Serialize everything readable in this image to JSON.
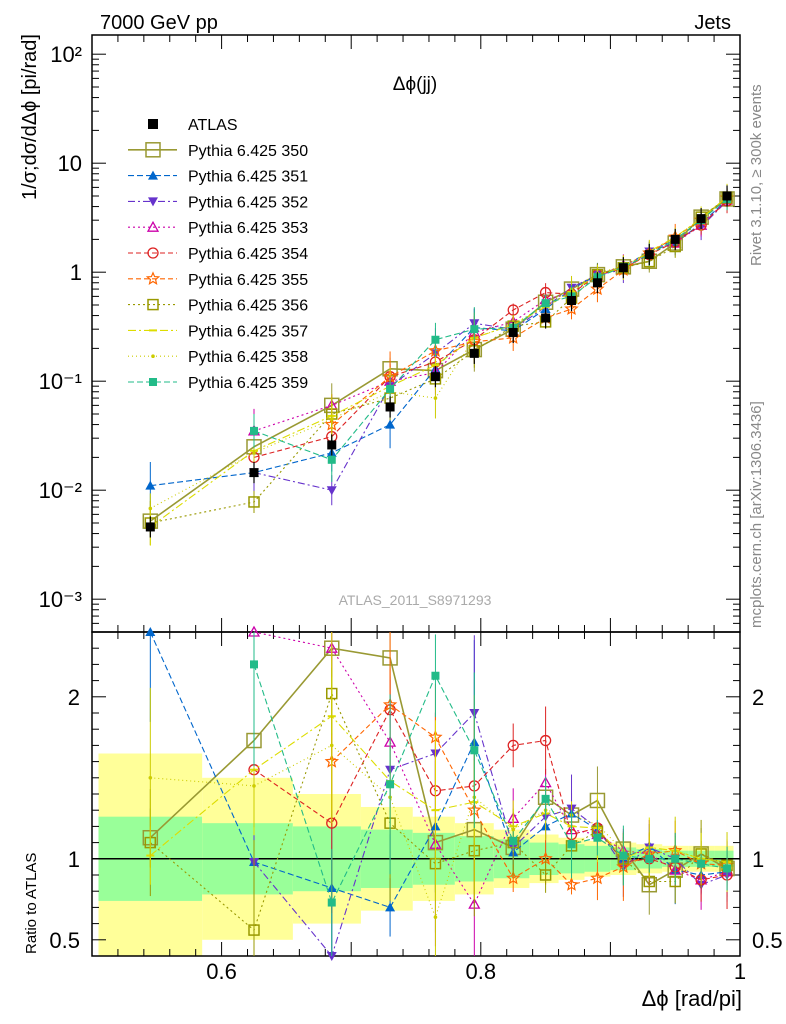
{
  "header": {
    "left": "7000 GeV pp",
    "right": "Jets",
    "plot_title": "Δϕ(jj)",
    "analysis_id": "ATLAS_2011_S8971293"
  },
  "side_labels": {
    "rivet": "Rivet 3.1.10, ≥ 300k events",
    "mcplots": "mcplots.cern.ch [arXiv:1306.3436]"
  },
  "axes": {
    "main_ylabel": "1/σ;dσ/dΔϕ [pi/rad]",
    "ratio_ylabel": "Ratio to ATLAS",
    "xlabel": "Δϕ [rad/pi]"
  },
  "colors": {
    "band_inner": "#99ff99",
    "band_outer": "#ffff99",
    "ATLAS": "#000000",
    "s350": "#999933",
    "s351": "#0066cc",
    "s352": "#6633cc",
    "s353": "#cc00aa",
    "s354": "#dd2222",
    "s355": "#ff6600",
    "s356": "#999900",
    "s357": "#dddd00",
    "s358": "#cccc00",
    "s359": "#22bb88"
  },
  "chart_data": {
    "type": "scatter",
    "x_scale": "linear",
    "main_y_scale": "log",
    "xlim": [
      0.5,
      1.0
    ],
    "main_ylim": [
      0.0005,
      150
    ],
    "ratio_ylim": [
      0.4,
      2.4
    ],
    "x_ticks": [
      0.6,
      0.8,
      1
    ],
    "x_tick_labels": [
      "0.6",
      "0.8",
      "1"
    ],
    "main_y_ticks": [
      0.001,
      0.01,
      0.1,
      1,
      10,
      100
    ],
    "main_y_tick_labels": [
      "10⁻³",
      "10⁻²",
      "10⁻¹",
      "1",
      "10",
      "10²"
    ],
    "ratio_y_ticks": [
      0.5,
      1,
      2
    ],
    "ratio_y_tick_labels": [
      "0.5",
      "1",
      "2"
    ],
    "x": [
      0.545,
      0.625,
      0.685,
      0.73,
      0.765,
      0.795,
      0.825,
      0.85,
      0.87,
      0.89,
      0.91,
      0.93,
      0.95,
      0.97,
      0.99
    ],
    "data": {
      "name": "ATLAS",
      "values": [
        0.0046,
        0.0145,
        0.026,
        0.058,
        0.11,
        0.18,
        0.28,
        0.38,
        0.55,
        0.8,
        1.1,
        1.45,
        2.0,
        3.1,
        5.0
      ],
      "band_inner": [
        0.26,
        0.22,
        0.2,
        0.18,
        0.16,
        0.14,
        0.12,
        0.1,
        0.09,
        0.08,
        0.07,
        0.06,
        0.05,
        0.05,
        0.05
      ],
      "band_outer": [
        0.65,
        0.5,
        0.4,
        0.32,
        0.26,
        0.22,
        0.18,
        0.15,
        0.13,
        0.11,
        0.1,
        0.09,
        0.08,
        0.08,
        0.08
      ]
    },
    "series": [
      {
        "name": "Pythia 6.425 350",
        "key": "s350",
        "marker": "square-open",
        "dash": "",
        "values": [
          0.0052,
          0.025,
          0.06,
          0.13,
          0.125,
          0.195,
          0.3,
          0.53,
          0.7,
          0.95,
          1.12,
          1.26,
          1.85,
          3.2,
          4.7
        ],
        "ratio": [
          1.13,
          1.73,
          2.3,
          2.24,
          1.1,
          1.18,
          1.07,
          1.38,
          1.27,
          1.36,
          1.06,
          0.84,
          0.93,
          1.03,
          0.94
        ]
      },
      {
        "name": "Pythia 6.425 351",
        "key": "s351",
        "marker": "triangle-up",
        "dash": "6,3",
        "values": [
          0.011,
          0.0145,
          0.022,
          0.04,
          0.13,
          0.31,
          0.29,
          0.46,
          0.7,
          0.94,
          1.1,
          1.57,
          1.85,
          2.8,
          4.6
        ],
        "ratio": [
          2.4,
          0.98,
          0.82,
          0.7,
          1.2,
          1.72,
          1.04,
          1.2,
          1.28,
          1.18,
          1.0,
          1.08,
          0.93,
          0.9,
          0.92
        ]
      },
      {
        "name": "Pythia 6.425 352",
        "key": "s352",
        "marker": "triangle-down",
        "dash": "7,3,2,3",
        "values": [
          null,
          0.0145,
          0.01,
          0.09,
          0.18,
          0.34,
          0.3,
          0.48,
          0.72,
          0.95,
          1.05,
          1.55,
          2.0,
          2.6,
          4.5
        ],
        "ratio": [
          null,
          0.98,
          0.38,
          1.55,
          1.65,
          1.9,
          1.07,
          1.26,
          1.31,
          1.19,
          0.95,
          1.07,
          1.0,
          0.84,
          0.9
        ]
      },
      {
        "name": "Pythia 6.425 353",
        "key": "s353",
        "marker": "triangle-up-open",
        "dash": "2,3",
        "values": [
          null,
          0.035,
          0.06,
          0.1,
          0.12,
          0.28,
          0.35,
          0.56,
          0.65,
          0.92,
          1.15,
          1.5,
          1.85,
          2.7,
          4.6
        ],
        "ratio": [
          null,
          2.4,
          2.3,
          1.72,
          1.09,
          0.72,
          1.25,
          1.47,
          1.18,
          1.15,
          1.05,
          1.03,
          0.93,
          0.87,
          0.92
        ]
      },
      {
        "name": "Pythia 6.425 354",
        "key": "s354",
        "marker": "circle-open",
        "dash": "5,3",
        "values": [
          null,
          0.02,
          0.031,
          0.11,
          0.15,
          0.24,
          0.45,
          0.65,
          0.63,
          0.95,
          1.08,
          1.45,
          1.9,
          2.7,
          4.5
        ],
        "ratio": [
          null,
          1.55,
          1.22,
          1.92,
          1.42,
          1.45,
          1.7,
          1.73,
          1.15,
          1.19,
          0.98,
          1.0,
          0.95,
          0.87,
          0.9
        ]
      },
      {
        "name": "Pythia 6.425 355",
        "key": "s355",
        "marker": "star-open",
        "dash": "5,3",
        "values": [
          null,
          null,
          0.04,
          0.11,
          0.19,
          0.23,
          0.25,
          0.38,
          0.46,
          0.7,
          1.05,
          1.5,
          2.1,
          3.0,
          4.8
        ],
        "ratio": [
          null,
          null,
          1.6,
          1.95,
          1.75,
          1.3,
          0.88,
          1.0,
          0.84,
          0.88,
          0.95,
          1.03,
          1.05,
          0.97,
          0.96
        ]
      },
      {
        "name": "Pythia 6.425 356",
        "key": "s356",
        "marker": "square-open",
        "dash": "2,3",
        "values": [
          0.005,
          0.0078,
          0.05,
          0.07,
          0.105,
          0.19,
          0.32,
          0.35,
          0.58,
          0.95,
          1.1,
          1.25,
          1.72,
          3.2,
          4.8
        ],
        "ratio": [
          1.1,
          0.56,
          2.02,
          1.22,
          0.97,
          1.05,
          1.1,
          0.9,
          1.08,
          1.17,
          1.0,
          0.86,
          0.86,
          1.03,
          0.96
        ]
      },
      {
        "name": "Pythia 6.425 357",
        "key": "s357",
        "marker": "dash",
        "dash": "8,3,2,3",
        "values": [
          0.0046,
          0.023,
          0.048,
          0.09,
          0.14,
          0.25,
          0.33,
          0.48,
          0.66,
          0.95,
          1.1,
          1.55,
          2.1,
          3.1,
          4.9
        ],
        "ratio": [
          1.02,
          1.55,
          1.88,
          1.48,
          1.3,
          1.35,
          1.2,
          1.28,
          1.2,
          1.19,
          1.0,
          1.07,
          1.05,
          1.0,
          0.98
        ]
      },
      {
        "name": "Pythia 6.425 358",
        "key": "s358",
        "marker": "dot",
        "dash": "1,3",
        "values": [
          0.0068,
          0.022,
          0.045,
          0.08,
          0.07,
          0.25,
          0.33,
          0.5,
          0.7,
          0.97,
          1.15,
          1.5,
          2.1,
          3.1,
          4.9
        ],
        "ratio": [
          1.5,
          1.45,
          1.7,
          1.38,
          0.64,
          1.38,
          1.18,
          1.3,
          1.27,
          1.21,
          1.05,
          1.03,
          1.05,
          1.0,
          0.98
        ]
      },
      {
        "name": "Pythia 6.425 359",
        "key": "s359",
        "marker": "square",
        "dash": "6,3",
        "values": [
          null,
          0.035,
          0.019,
          0.085,
          0.24,
          0.3,
          0.31,
          0.52,
          0.6,
          0.9,
          1.12,
          1.45,
          2.0,
          3.0,
          4.7
        ],
        "ratio": [
          null,
          2.2,
          0.73,
          1.46,
          2.13,
          1.67,
          1.11,
          1.37,
          1.09,
          1.13,
          1.02,
          1.0,
          1.0,
          0.97,
          0.94
        ]
      }
    ]
  }
}
